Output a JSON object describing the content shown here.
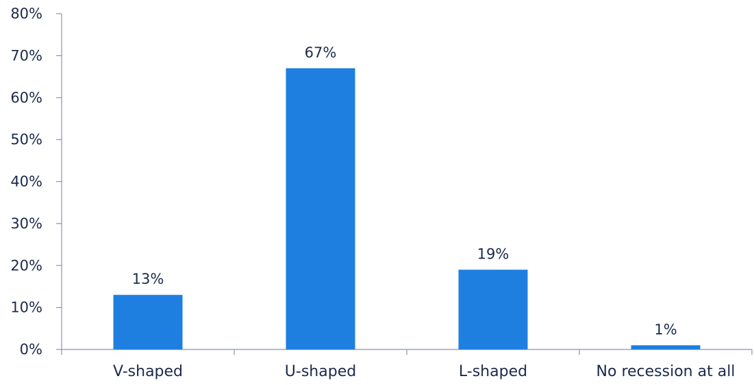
{
  "chart_data": {
    "type": "bar",
    "categories": [
      "V-shaped",
      "U-shaped",
      "L-shaped",
      "No recession at all"
    ],
    "values": [
      13,
      67,
      19,
      1
    ],
    "data_labels": [
      "13%",
      "67%",
      "19%",
      "1%"
    ],
    "ylim": [
      0,
      80
    ],
    "yticks": [
      0,
      10,
      20,
      30,
      40,
      50,
      60,
      70,
      80
    ],
    "ytick_labels": [
      "0%",
      "10%",
      "20%",
      "30%",
      "40%",
      "50%",
      "60%",
      "70%",
      "80%"
    ],
    "grid": false,
    "legend": "none",
    "bar_color": "#1e7fe0",
    "axis_color": "#8a94a6",
    "text_color": "#1b2a4a"
  }
}
